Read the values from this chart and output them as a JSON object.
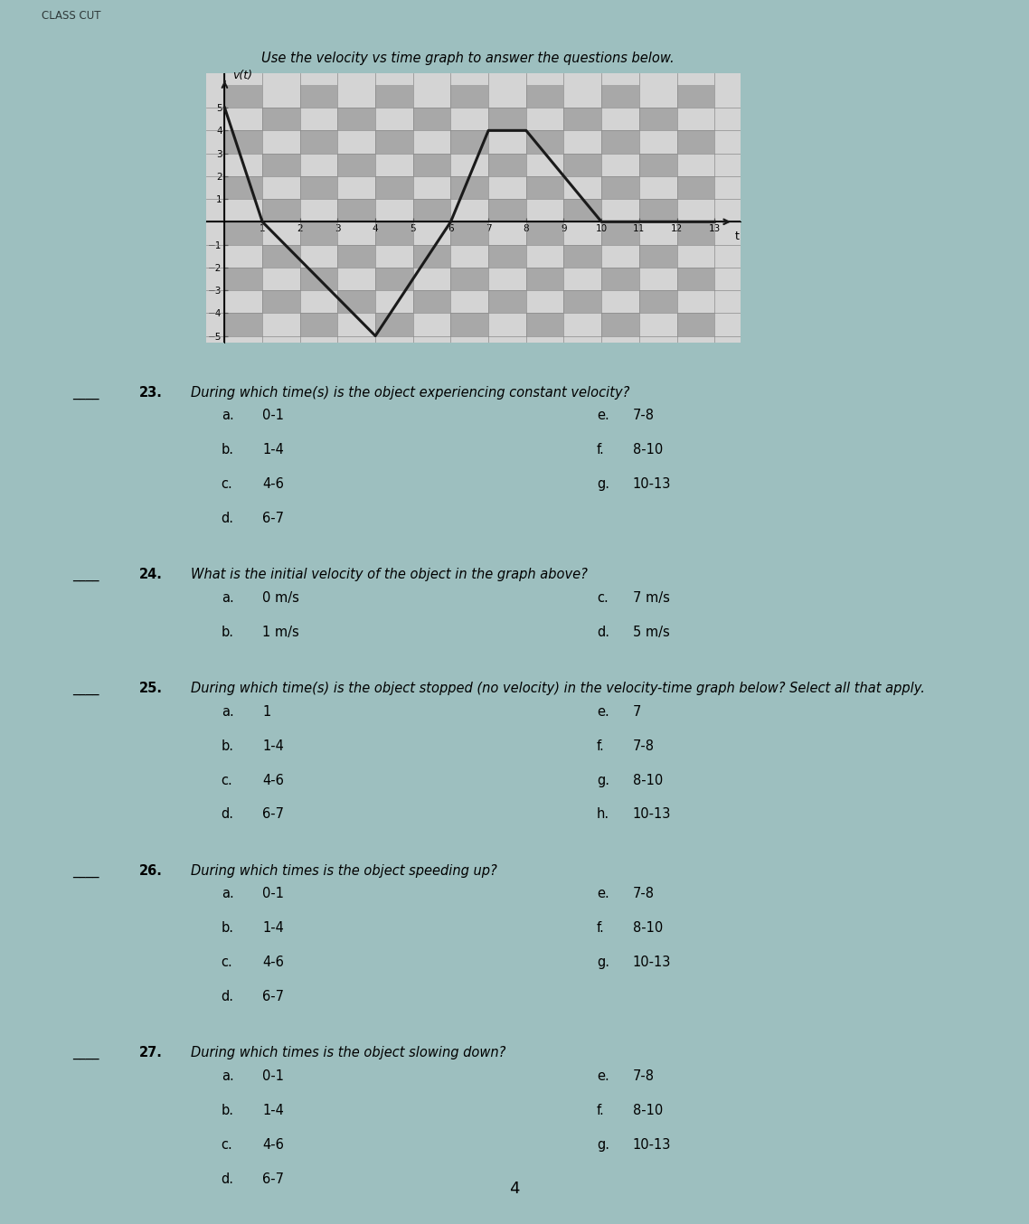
{
  "graph_title": "Use the velocity vs time graph to answer the questions below.",
  "x_label": "t",
  "y_label": "v(t)",
  "time_points": [
    0,
    1,
    4,
    6,
    7,
    8,
    10,
    13
  ],
  "velocity_points": [
    5,
    0,
    -5,
    0,
    4,
    4,
    0,
    0
  ],
  "x_min": 0,
  "x_max": 13,
  "y_min": -5,
  "y_max": 6,
  "x_ticks": [
    1,
    2,
    3,
    4,
    5,
    6,
    7,
    8,
    9,
    10,
    11,
    12,
    13
  ],
  "y_ticks": [
    -5,
    -4,
    -3,
    -2,
    -1,
    1,
    2,
    3,
    4,
    5
  ],
  "line_color": "#1a1a1a",
  "grid_color": "#888888",
  "checker_light": "#d4d4d4",
  "checker_dark": "#a8a8a8",
  "page_color": "#9dbfbf",
  "header_text": "CLASS CUT",
  "graph_title_style": "italic",
  "questions": [
    {
      "number": "23.",
      "text": "During which time(s) is the object experiencing constant velocity?",
      "options_left": [
        [
          "a.",
          "0-1"
        ],
        [
          "b.",
          "1-4"
        ],
        [
          "c.",
          "4-6"
        ],
        [
          "d.",
          "6-7"
        ]
      ],
      "options_right": [
        [
          "e.",
          "7-8"
        ],
        [
          "f.",
          "8-10"
        ],
        [
          "g.",
          "10-13"
        ]
      ]
    },
    {
      "number": "24.",
      "text": "What is the initial velocity of the object in the graph above?",
      "options_left": [
        [
          "a.",
          "0 m/s"
        ],
        [
          "b.",
          "1 m/s"
        ]
      ],
      "options_right": [
        [
          "c.",
          "7 m/s"
        ],
        [
          "d.",
          "5 m/s"
        ]
      ]
    },
    {
      "number": "25.",
      "text": "During which time(s) is the object stopped (no velocity) in the velocity-time graph below? Select all that apply.",
      "options_left": [
        [
          "a.",
          "1"
        ],
        [
          "b.",
          "1-4"
        ],
        [
          "c.",
          "4-6"
        ],
        [
          "d.",
          "6-7"
        ]
      ],
      "options_right": [
        [
          "e.",
          "7"
        ],
        [
          "f.",
          "7-8"
        ],
        [
          "g.",
          "8-10"
        ],
        [
          "h.",
          "10-13"
        ]
      ]
    },
    {
      "number": "26.",
      "text": "During which times is the object speeding up?",
      "options_left": [
        [
          "a.",
          "0-1"
        ],
        [
          "b.",
          "1-4"
        ],
        [
          "c.",
          "4-6"
        ],
        [
          "d.",
          "6-7"
        ]
      ],
      "options_right": [
        [
          "e.",
          "7-8"
        ],
        [
          "f.",
          "8-10"
        ],
        [
          "g.",
          "10-13"
        ]
      ]
    },
    {
      "number": "27.",
      "text": "During which times is the object slowing down?",
      "options_left": [
        [
          "a.",
          "0-1"
        ],
        [
          "b.",
          "1-4"
        ],
        [
          "c.",
          "4-6"
        ],
        [
          "d.",
          "6-7"
        ]
      ],
      "options_right": [
        [
          "e.",
          "7-8"
        ],
        [
          "f.",
          "8-10"
        ],
        [
          "g.",
          "10-13"
        ]
      ]
    }
  ],
  "page_number": "4"
}
